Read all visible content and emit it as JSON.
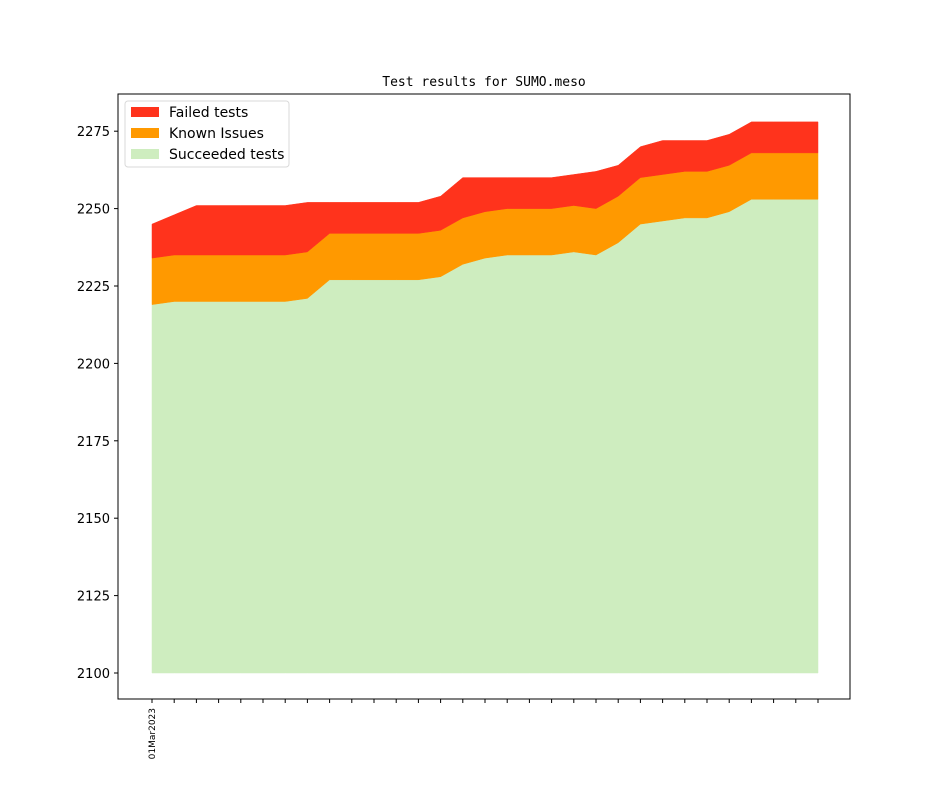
{
  "chart_data": {
    "type": "area",
    "stacked": true,
    "title": "Test results for SUMO.meso",
    "xlabel": "",
    "ylabel": "",
    "ylim": [
      2092,
      2283
    ],
    "yticks": [
      2100,
      2125,
      2150,
      2175,
      2200,
      2225,
      2250,
      2275
    ],
    "ytick_labels": [
      "2100",
      "2125",
      "2150",
      "2175",
      "2200",
      "2225",
      "2250",
      "2275"
    ],
    "xtick_labels": [
      "01Mar2023",
      "",
      "",
      "",
      "",
      "",
      "",
      "",
      "",
      "",
      "",
      "",
      "",
      "",
      "",
      "",
      "",
      "",
      "",
      "",
      "",
      "",
      "",
      "",
      "",
      "",
      "",
      "",
      "",
      "",
      ""
    ],
    "baseline": 2100,
    "legend_position": "upper-left",
    "grid": false,
    "series": [
      {
        "name": "Succeeded tests",
        "color": "#ceedbf",
        "cumulative_top": [
          2219,
          2220,
          2220,
          2220,
          2220,
          2220,
          2220,
          2221,
          2227,
          2227,
          2227,
          2227,
          2227,
          2228,
          2232,
          2234,
          2235,
          2235,
          2235,
          2236,
          2235,
          2239,
          2245,
          2246,
          2247,
          2247,
          2249,
          2253,
          2253,
          2253,
          2253
        ]
      },
      {
        "name": "Known Issues",
        "color": "#ff9900",
        "cumulative_top": [
          2234,
          2235,
          2235,
          2235,
          2235,
          2235,
          2235,
          2236,
          2242,
          2242,
          2242,
          2242,
          2242,
          2243,
          2247,
          2249,
          2250,
          2250,
          2250,
          2251,
          2250,
          2254,
          2260,
          2261,
          2262,
          2262,
          2264,
          2268,
          2268,
          2268,
          2268
        ]
      },
      {
        "name": "Failed tests",
        "color": "#ff331c",
        "cumulative_top": [
          2245,
          2248,
          2251,
          2251,
          2251,
          2251,
          2251,
          2252,
          2252,
          2252,
          2252,
          2252,
          2252,
          2254,
          2260,
          2260,
          2260,
          2260,
          2260,
          2261,
          2262,
          2264,
          2270,
          2272,
          2272,
          2272,
          2274,
          2278,
          2278,
          2278,
          2278
        ]
      }
    ],
    "legend": [
      "Failed tests",
      "Known Issues",
      "Succeeded tests"
    ]
  }
}
